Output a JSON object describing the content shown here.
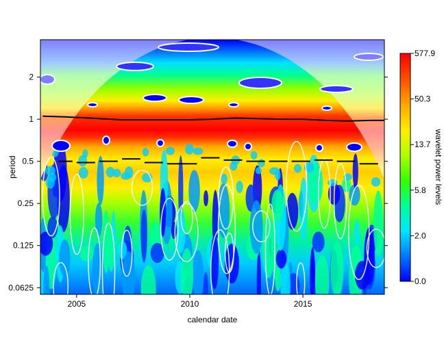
{
  "chart_data": {
    "type": "heatmap",
    "title": "",
    "xlabel": "calendar date",
    "ylabel": "period",
    "x_range": [
      2003.4,
      2018.6
    ],
    "x_ticks": [
      2005,
      2010,
      2015
    ],
    "y_scale": "log2",
    "y_range": [
      0.056,
      3.7
    ],
    "y_ticks": [
      0.0625,
      0.125,
      0.25,
      0.5,
      1,
      2
    ],
    "y_tick_labels": [
      "0.0625",
      "0.125",
      "0.25",
      "0.5",
      "1",
      "2"
    ],
    "colorbar": {
      "title": "wavelet power levels",
      "labels": [
        "0.0",
        "2.0",
        "5.8",
        "13.7",
        "50.3",
        "577.9"
      ],
      "colors": [
        "#0000ff",
        "#0077ff",
        "#00e5ff",
        "#00ff66",
        "#33ff00",
        "#ccff00",
        "#ffee00",
        "#ff9900",
        "#ff3300",
        "#ff0000"
      ]
    },
    "power_ridge": {
      "name": "ridge",
      "x": [
        2003.5,
        2004.5,
        2005.5,
        2006.5,
        2007.0,
        2008.0,
        2009.0,
        2010.0,
        2011.0,
        2012.0,
        2013.0,
        2014.0,
        2015.0,
        2016.0,
        2017.0,
        2018.0,
        2018.6
      ],
      "period": [
        1.05,
        1.04,
        1.02,
        1.0,
        0.99,
        0.99,
        0.99,
        0.99,
        1.0,
        1.02,
        1.01,
        1.0,
        1.0,
        0.98,
        0.97,
        0.98,
        0.98
      ]
    },
    "semiannual_ridge": {
      "name": "ridge",
      "x": [
        2004.2,
        2005.0,
        2006.0,
        2007.0,
        2008.0,
        2009.0,
        2010.5,
        2011.5,
        2012.5,
        2013.5,
        2014.5,
        2015.5,
        2016.5,
        2017.5,
        2018.5
      ],
      "period": [
        0.5,
        0.49,
        0.5,
        0.52,
        0.49,
        0.48,
        0.53,
        0.51,
        0.5,
        0.5,
        0.5,
        0.51,
        0.5,
        0.48,
        0.56
      ]
    },
    "grid": false,
    "legend": "colorbar right"
  }
}
